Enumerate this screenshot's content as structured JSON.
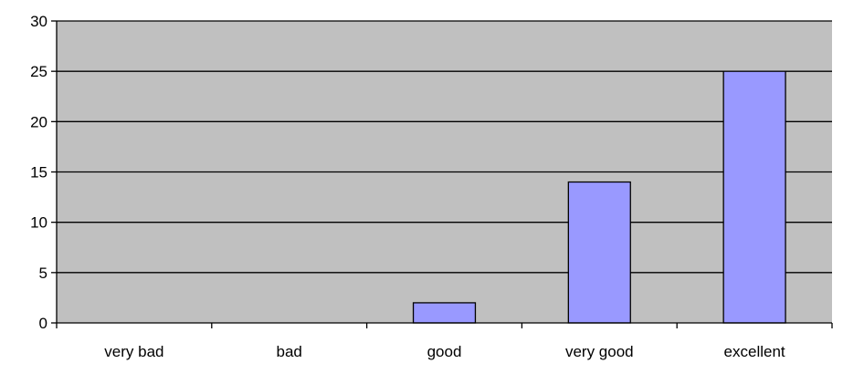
{
  "chart_data": {
    "type": "bar",
    "categories": [
      "very bad",
      "bad",
      "good",
      "very good",
      "excellent"
    ],
    "values": [
      0,
      0,
      2,
      14,
      25
    ],
    "ylim": [
      0,
      30
    ],
    "yticks": [
      0,
      5,
      10,
      15,
      20,
      25,
      30
    ],
    "grid": true,
    "legend": "none",
    "colors": {
      "bar": "#9999ff",
      "plot_background": "#c0c0c0",
      "gridline": "#000000"
    }
  }
}
